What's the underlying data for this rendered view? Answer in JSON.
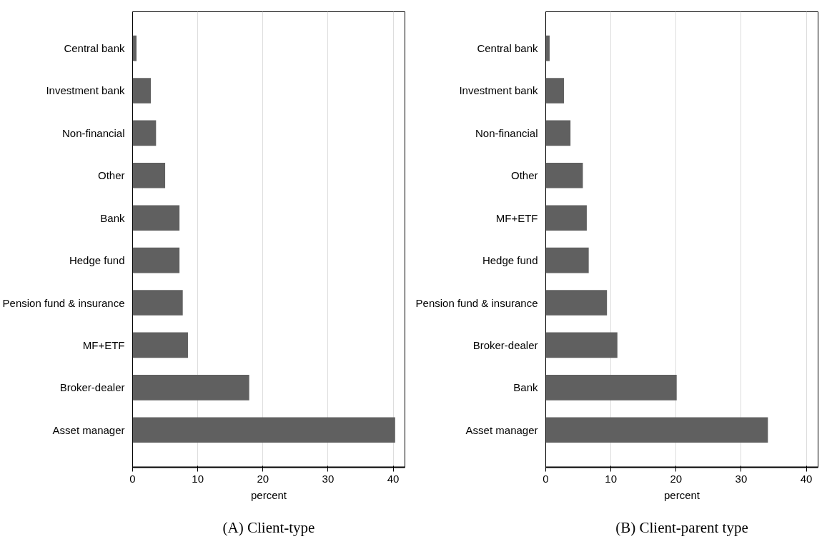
{
  "chart_data": [
    {
      "type": "bar",
      "orientation": "horizontal",
      "title": "(A) Client-type",
      "xlabel": "percent",
      "categories": [
        "Central bank",
        "Investment bank",
        "Non-financial",
        "Other",
        "Bank",
        "Hedge fund",
        "Pension fund & insurance",
        "MF+ETF",
        "Broker-dealer",
        "Asset manager"
      ],
      "values": [
        0.6,
        2.8,
        3.6,
        5.0,
        7.2,
        7.2,
        7.7,
        8.5,
        17.9,
        40.3
      ],
      "color": "#606060",
      "xlim": [
        0,
        41.8
      ],
      "xticks": [
        0,
        10,
        20,
        30,
        40
      ],
      "grid": "x"
    },
    {
      "type": "bar",
      "orientation": "horizontal",
      "title": "(B) Client-parent type",
      "xlabel": "percent",
      "categories": [
        "Central bank",
        "Investment bank",
        "Non-financial",
        "Other",
        "MF+ETF",
        "Hedge fund",
        "Pension fund & insurance",
        "Broker-dealer",
        "Bank",
        "Asset manager"
      ],
      "values": [
        0.6,
        2.8,
        3.8,
        5.7,
        6.3,
        6.6,
        9.4,
        11.0,
        20.1,
        34.1
      ],
      "color": "#606060",
      "xlim": [
        0,
        41.8
      ],
      "xticks": [
        0,
        10,
        20,
        30,
        40
      ],
      "grid": "x"
    }
  ]
}
